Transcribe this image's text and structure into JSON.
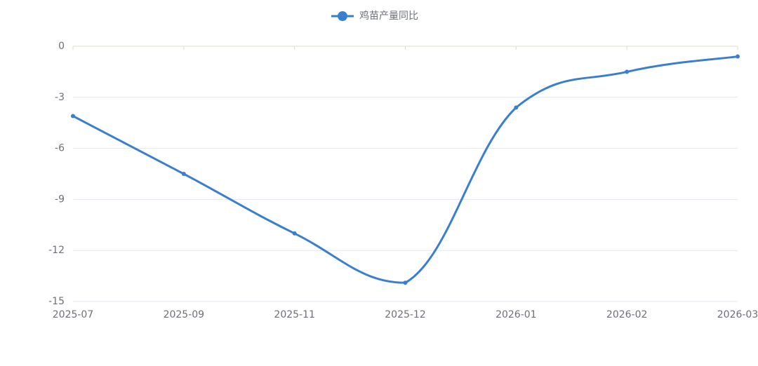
{
  "chart_data": {
    "type": "line",
    "categories": [
      "2025-07",
      "2025-09",
      "2025-11",
      "2025-12",
      "2026-01",
      "2026-02",
      "2026-03"
    ],
    "series": [
      {
        "name": "鸡苗产量同比",
        "color": "#3a7fcf",
        "values": [
          -4.1,
          -7.5,
          -11.0,
          -13.9,
          -3.6,
          -1.5,
          -0.6
        ]
      }
    ],
    "ylim": [
      -15,
      0
    ],
    "yticks": [
      0,
      -3,
      -6,
      -9,
      -12,
      -15
    ],
    "grid": true,
    "smooth": true,
    "legend": "top"
  }
}
